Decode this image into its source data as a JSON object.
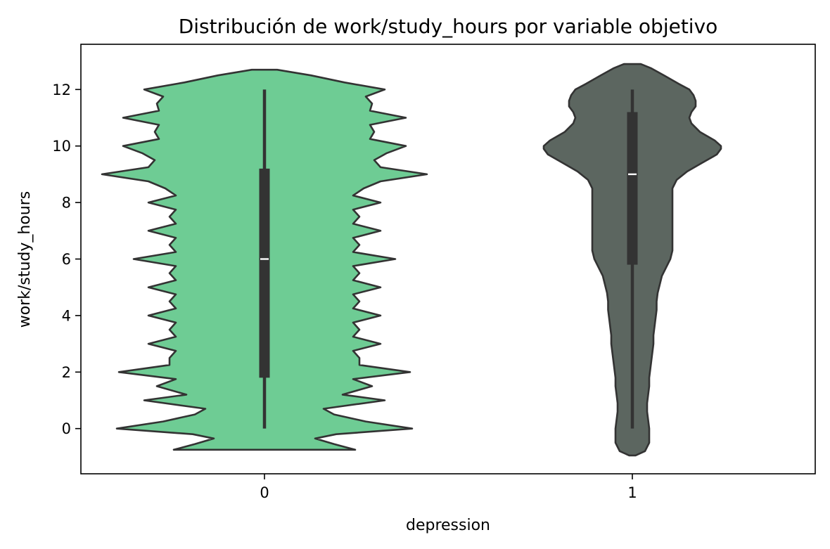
{
  "chart_data": {
    "type": "violin",
    "title": "Distribución de work/study_hours por variable objetivo",
    "xlabel": "depression",
    "ylabel": "work/study_hours",
    "categories": [
      "0",
      "1"
    ],
    "yticks": [
      0,
      2,
      4,
      6,
      8,
      10,
      12
    ],
    "ylim": [
      -1.6,
      13.6
    ],
    "grid": false,
    "legend": "none",
    "colors": {
      "0": "#6ecc94",
      "1": "#5c6660",
      "edge": "#333333",
      "box": "#333333",
      "median": "#ffffff"
    },
    "violins": [
      {
        "category": "0",
        "min": 0,
        "q1": 1.8,
        "median": 6,
        "q3": 9.2,
        "max": 12,
        "profile": [
          [
            -0.75,
            0.43
          ],
          [
            -0.55,
            0.33
          ],
          [
            -0.35,
            0.24
          ],
          [
            -0.2,
            0.34
          ],
          [
            0,
            0.7
          ],
          [
            0.25,
            0.48
          ],
          [
            0.5,
            0.33
          ],
          [
            0.7,
            0.28
          ],
          [
            1.0,
            0.57
          ],
          [
            1.2,
            0.37
          ],
          [
            1.5,
            0.51
          ],
          [
            1.75,
            0.42
          ],
          [
            2.0,
            0.69
          ],
          [
            2.25,
            0.45
          ],
          [
            2.5,
            0.45
          ],
          [
            2.75,
            0.42
          ],
          [
            3.0,
            0.55
          ],
          [
            3.25,
            0.42
          ],
          [
            3.5,
            0.45
          ],
          [
            3.75,
            0.42
          ],
          [
            4.0,
            0.55
          ],
          [
            4.25,
            0.42
          ],
          [
            4.5,
            0.45
          ],
          [
            4.75,
            0.42
          ],
          [
            5.0,
            0.55
          ],
          [
            5.25,
            0.42
          ],
          [
            5.5,
            0.45
          ],
          [
            5.75,
            0.42
          ],
          [
            6.0,
            0.62
          ],
          [
            6.25,
            0.42
          ],
          [
            6.5,
            0.45
          ],
          [
            6.75,
            0.42
          ],
          [
            7.0,
            0.55
          ],
          [
            7.25,
            0.42
          ],
          [
            7.5,
            0.45
          ],
          [
            7.75,
            0.42
          ],
          [
            8.0,
            0.55
          ],
          [
            8.25,
            0.42
          ],
          [
            8.5,
            0.47
          ],
          [
            8.75,
            0.55
          ],
          [
            9.0,
            0.77
          ],
          [
            9.25,
            0.55
          ],
          [
            9.5,
            0.52
          ],
          [
            9.75,
            0.58
          ],
          [
            10.0,
            0.67
          ],
          [
            10.25,
            0.5
          ],
          [
            10.5,
            0.52
          ],
          [
            10.75,
            0.5
          ],
          [
            11.0,
            0.67
          ],
          [
            11.25,
            0.5
          ],
          [
            11.5,
            0.51
          ],
          [
            11.75,
            0.48
          ],
          [
            12.0,
            0.57
          ],
          [
            12.25,
            0.38
          ],
          [
            12.5,
            0.22
          ],
          [
            12.7,
            0.06
          ]
        ]
      },
      {
        "category": "1",
        "min": 0,
        "q1": 5.8,
        "median": 9,
        "q3": 11.2,
        "max": 12,
        "profile": [
          [
            -0.95,
            0.015
          ],
          [
            -0.8,
            0.06
          ],
          [
            -0.5,
            0.08
          ],
          [
            -0.2,
            0.08
          ],
          [
            0,
            0.08
          ],
          [
            0.3,
            0.075
          ],
          [
            0.6,
            0.07
          ],
          [
            0.9,
            0.07
          ],
          [
            1.2,
            0.075
          ],
          [
            1.5,
            0.08
          ],
          [
            1.8,
            0.08
          ],
          [
            2.1,
            0.085
          ],
          [
            2.4,
            0.09
          ],
          [
            2.7,
            0.095
          ],
          [
            3.0,
            0.1
          ],
          [
            3.3,
            0.1
          ],
          [
            3.6,
            0.105
          ],
          [
            3.9,
            0.11
          ],
          [
            4.2,
            0.115
          ],
          [
            4.5,
            0.115
          ],
          [
            4.8,
            0.12
          ],
          [
            5.1,
            0.13
          ],
          [
            5.4,
            0.14
          ],
          [
            5.7,
            0.16
          ],
          [
            6.0,
            0.18
          ],
          [
            6.3,
            0.19
          ],
          [
            6.6,
            0.19
          ],
          [
            7.0,
            0.19
          ],
          [
            7.4,
            0.19
          ],
          [
            7.8,
            0.19
          ],
          [
            8.2,
            0.19
          ],
          [
            8.5,
            0.19
          ],
          [
            8.8,
            0.21
          ],
          [
            9.1,
            0.26
          ],
          [
            9.4,
            0.33
          ],
          [
            9.7,
            0.4
          ],
          [
            9.9,
            0.42
          ],
          [
            10.0,
            0.42
          ],
          [
            10.2,
            0.39
          ],
          [
            10.5,
            0.32
          ],
          [
            10.8,
            0.28
          ],
          [
            11.0,
            0.27
          ],
          [
            11.2,
            0.28
          ],
          [
            11.4,
            0.3
          ],
          [
            11.6,
            0.3
          ],
          [
            11.8,
            0.29
          ],
          [
            12.0,
            0.27
          ],
          [
            12.2,
            0.22
          ],
          [
            12.5,
            0.15
          ],
          [
            12.75,
            0.09
          ],
          [
            12.9,
            0.04
          ]
        ]
      }
    ]
  }
}
